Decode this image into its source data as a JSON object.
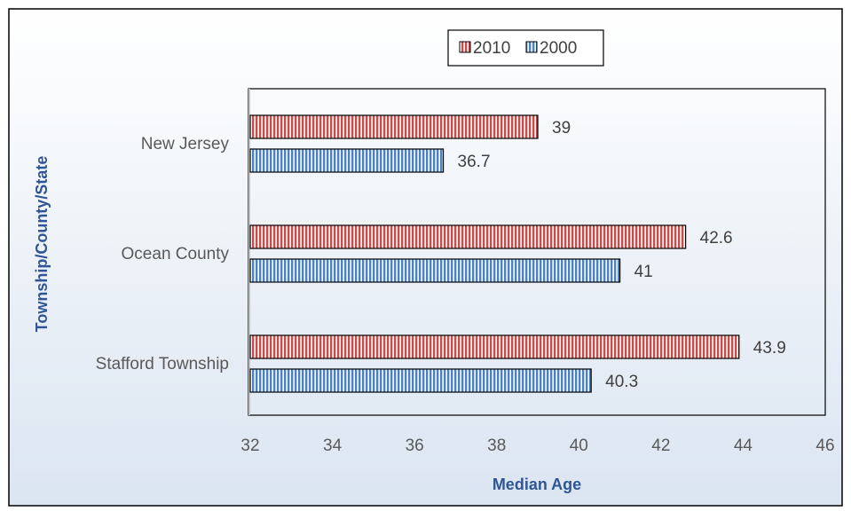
{
  "chart_data": {
    "type": "bar",
    "orientation": "horizontal",
    "categories": [
      "New Jersey",
      "Ocean County",
      "Stafford Township"
    ],
    "series": [
      {
        "name": "2010",
        "values": [
          39,
          42.6,
          43.9
        ],
        "value_labels": [
          "39",
          "42.6",
          "43.9"
        ]
      },
      {
        "name": "2000",
        "values": [
          36.7,
          41,
          40.3
        ],
        "value_labels": [
          "36.7",
          "41",
          "40.3"
        ]
      }
    ],
    "xlabel": "Median Age",
    "ylabel": "Township/County/State",
    "xlim": [
      32,
      46
    ],
    "xticks": [
      "32",
      "34",
      "36",
      "38",
      "40",
      "42",
      "44",
      "46"
    ],
    "grid": false,
    "legend": "top-center",
    "colors": {
      "series_2010": "#c0504d",
      "series_2000": "#4f81bd",
      "axis_title": "#2f5597",
      "tick_text": "#595959",
      "background_top": "#ffffff",
      "background_bottom": "#dbe5f1"
    }
  }
}
